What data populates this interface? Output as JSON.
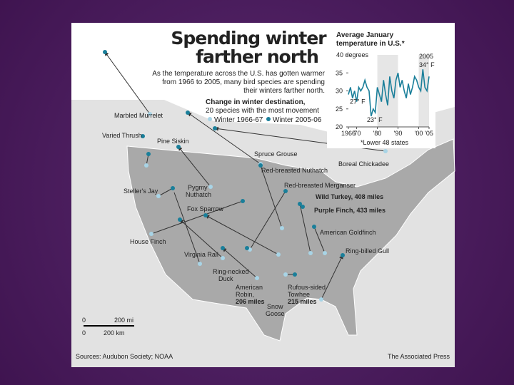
{
  "header": {
    "title_line1": "Spending winter",
    "title_line2": "farther north",
    "subtitle_line1": "As the temperature across the U.S. has gotten warmer",
    "subtitle_line2": "from 1966 to 2005, many bird species are spending",
    "subtitle_line3": "their winters farther north."
  },
  "legend": {
    "title": "Change in winter destination,",
    "subtitle": "20 species with the most movement",
    "old": "Winter 1966-67",
    "new": "Winter 2005-06"
  },
  "map": {
    "labels": [
      "Marbled Murrelet",
      "Varied Thrush",
      "Pine Siskin",
      "Spruce Grouse",
      "Boreal Chickadee",
      "Red-breasted Nuthatch",
      "Red-breasted Merganser",
      "Wild Turkey, 408 miles",
      "Purple Finch, 433 miles",
      "Steller's Jay",
      "Pygmy",
      "Nuthatch",
      "Fox Sparrow",
      "American Goldfinch",
      "House Finch",
      "Virginia Rail",
      "Ring-billed Gull",
      "Ring-necked",
      "Duck",
      "American",
      "Robin,",
      "206 miles",
      "Rufous-sided",
      "Towhee",
      "215 miles",
      "Snow",
      "Goose"
    ],
    "scale": [
      "0",
      "200 mi",
      "0",
      "200 km"
    ]
  },
  "footer": {
    "source": "Sources: Audubon Society; NOAA",
    "credit": "The Associated Press"
  },
  "chart_data": {
    "type": "line",
    "title_line1": "Average January",
    "title_line2": "temperature in U.S.*",
    "footnote": "*Lower 48 states",
    "x": [
      1966,
      1967,
      1968,
      1969,
      1970,
      1971,
      1972,
      1973,
      1974,
      1975,
      1976,
      1977,
      1978,
      1979,
      1980,
      1981,
      1982,
      1983,
      1984,
      1985,
      1986,
      1987,
      1988,
      1989,
      1990,
      1991,
      1992,
      1993,
      1994,
      1995,
      1996,
      1997,
      1998,
      1999,
      2000,
      2001,
      2002,
      2003,
      2004,
      2005
    ],
    "series": [
      {
        "name": "Average January temperature",
        "color": "#1a7f9a",
        "values": [
          29,
          31,
          28,
          30,
          27,
          31,
          30,
          31,
          33,
          31,
          30,
          23,
          25,
          24,
          31,
          29,
          27,
          33,
          29,
          26,
          34,
          30,
          28,
          33,
          35,
          31,
          33,
          30,
          28,
          32,
          29,
          31,
          34,
          33,
          31,
          30,
          36,
          31,
          30,
          34
        ]
      }
    ],
    "xlim": [
      1966,
      2005
    ],
    "ylim": [
      20,
      40
    ],
    "xticks": [
      1966,
      {
        "value": 1970,
        "label": "'70"
      },
      {
        "value": 1980,
        "label": "'80"
      },
      {
        "value": 1990,
        "label": "'90"
      },
      {
        "value": 2000,
        "label": "'00"
      },
      {
        "value": 2005,
        "label": "'05"
      }
    ],
    "yticks": [
      20,
      25,
      30,
      35,
      {
        "value": 40,
        "label": "40 degrees"
      }
    ],
    "annotations": [
      "27° F",
      "23° F",
      "2005",
      "34° F"
    ]
  }
}
